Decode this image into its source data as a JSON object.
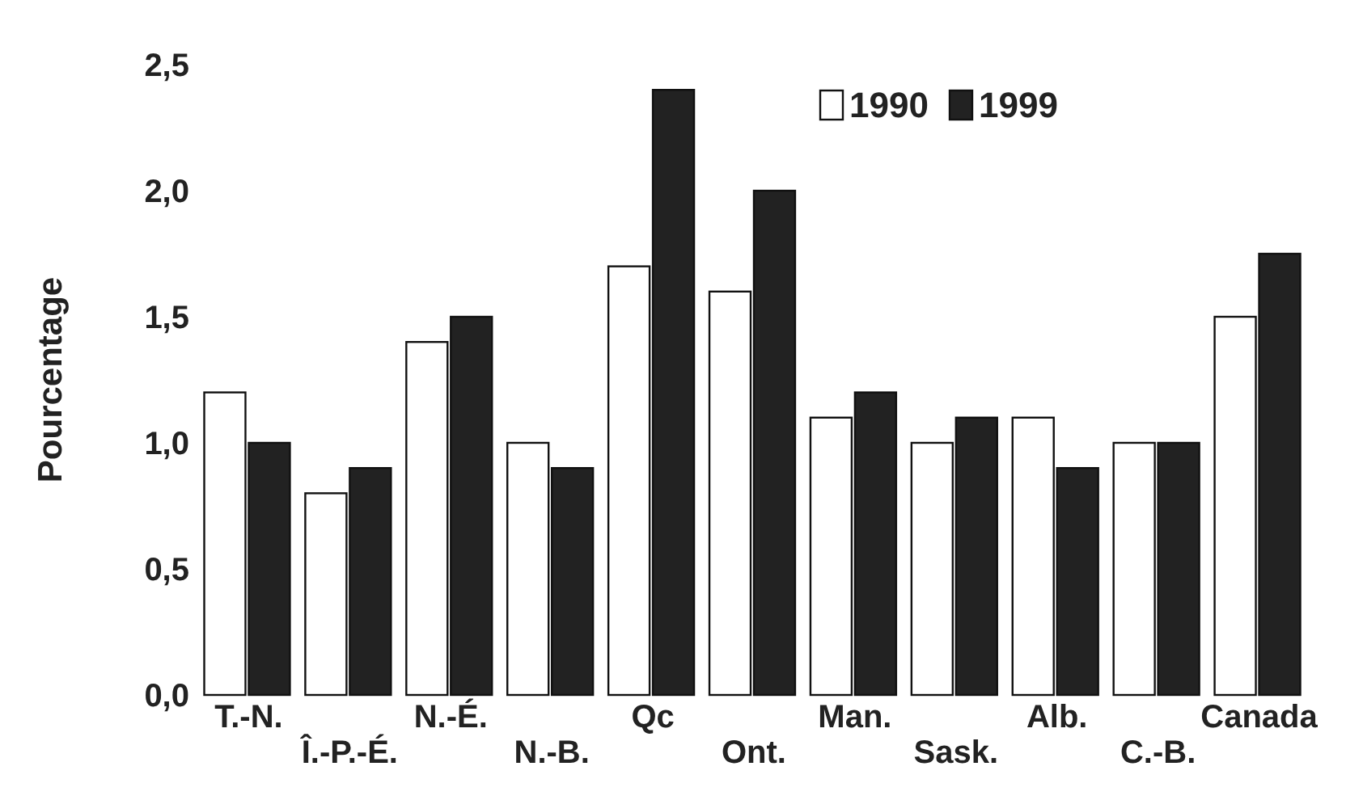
{
  "chart_data": {
    "type": "bar",
    "ylabel": "Pourcentage",
    "categories": [
      "T.-N.",
      "Î.-P.-É.",
      "N.-É.",
      "N.-B.",
      "Qc",
      "Ont.",
      "Man.",
      "Sask.",
      "Alb.",
      "C.-B.",
      "Canada"
    ],
    "series": [
      {
        "name": "1990",
        "color": "#ffffff",
        "values": [
          1.2,
          0.8,
          1.4,
          1.0,
          1.7,
          1.6,
          1.1,
          1.0,
          1.1,
          1.0,
          1.5
        ]
      },
      {
        "name": "1999",
        "color": "#222222",
        "values": [
          1.0,
          0.9,
          1.5,
          0.9,
          2.4,
          2.0,
          1.2,
          1.1,
          0.9,
          1.0,
          1.75
        ]
      }
    ],
    "ylim": [
      0,
      2.5
    ],
    "yticks": [
      {
        "value": 0,
        "label": "0,0"
      },
      {
        "value": 0.5,
        "label": "0,5"
      },
      {
        "value": 1,
        "label": "1,0"
      },
      {
        "value": 1.5,
        "label": "1,5"
      },
      {
        "value": 2,
        "label": "2,0"
      },
      {
        "value": 2.5,
        "label": "2,5"
      }
    ],
    "grid": false,
    "legend": "top right"
  }
}
